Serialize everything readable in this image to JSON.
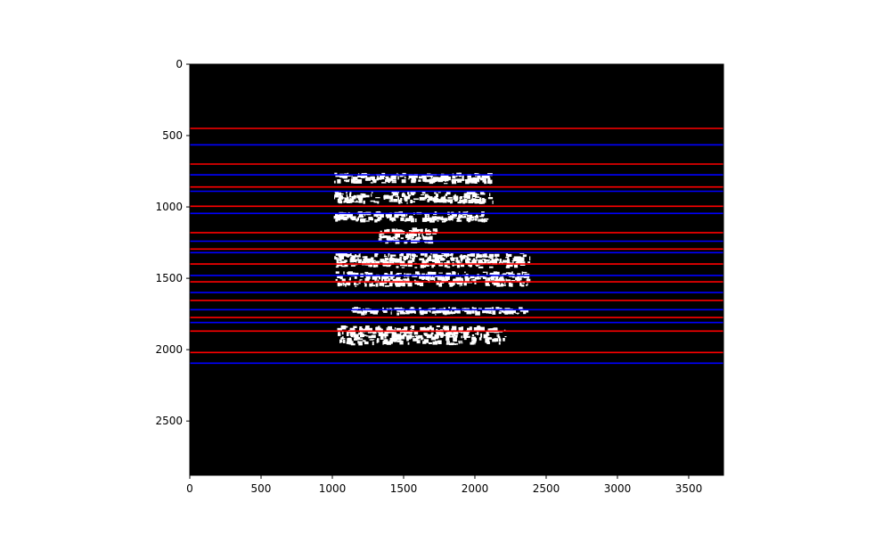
{
  "chart_data": {
    "type": "heatmap",
    "title": "",
    "xlabel": "",
    "ylabel": "",
    "image_size": {
      "width": 3744,
      "height": 2880
    },
    "xlim": [
      0,
      3744
    ],
    "ylim": [
      2880,
      0
    ],
    "y_inverted": true,
    "grid": false,
    "legend": null,
    "x_ticks": [
      0,
      500,
      1000,
      1500,
      2000,
      2500,
      3000,
      3500
    ],
    "y_ticks": [
      0,
      500,
      1000,
      1500,
      2000,
      2500
    ],
    "background_color": "#000000",
    "foreground_color": "#ffffff",
    "series": [
      {
        "color": "#ff0000",
        "y": [
          450,
          700,
          860,
          995,
          1180,
          1295,
          1400,
          1525,
          1655,
          1775,
          1870,
          2020
        ]
      },
      {
        "color": "#0000ff",
        "y": [
          565,
          775,
          890,
          1045,
          1240,
          1320,
          1480,
          1600,
          1720,
          1810,
          2095
        ]
      }
    ],
    "text_blobs": [
      {
        "x0": 1010,
        "x1": 2130,
        "y0": 760,
        "y1": 840
      },
      {
        "x0": 1010,
        "x1": 2130,
        "y0": 890,
        "y1": 980
      },
      {
        "x0": 1010,
        "x1": 2100,
        "y0": 1030,
        "y1": 1110
      },
      {
        "x0": 1320,
        "x1": 1740,
        "y0": 1140,
        "y1": 1260
      },
      {
        "x0": 1010,
        "x1": 2390,
        "y0": 1320,
        "y1": 1430
      },
      {
        "x0": 1010,
        "x1": 2390,
        "y0": 1450,
        "y1": 1560
      },
      {
        "x0": 1130,
        "x1": 2390,
        "y0": 1700,
        "y1": 1760
      },
      {
        "x0": 1030,
        "x1": 2230,
        "y0": 1830,
        "y1": 1970
      }
    ]
  }
}
